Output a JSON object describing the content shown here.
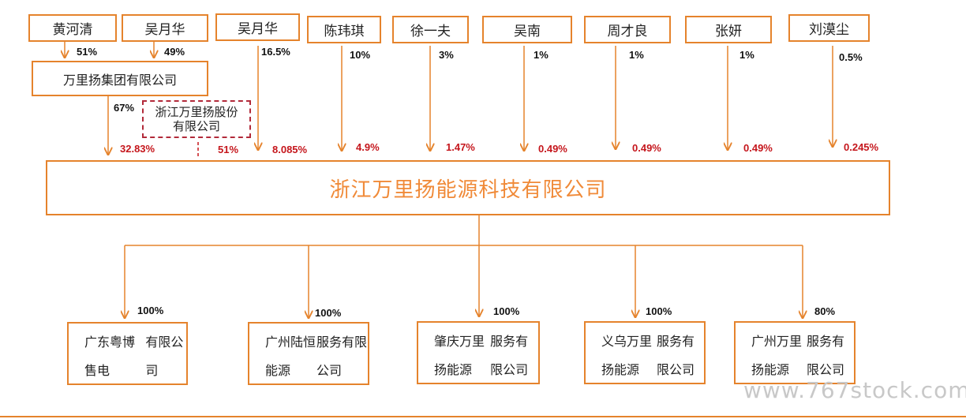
{
  "diagram": {
    "title": "浙江万里扬能源科技有限公司",
    "top_shareholders": [
      {
        "name": "黄河清"
      },
      {
        "name": "吴月华"
      },
      {
        "name": "吴月华"
      },
      {
        "name": "陈玮琪"
      },
      {
        "name": "徐一夫"
      },
      {
        "name": "吴南"
      },
      {
        "name": "周才良"
      },
      {
        "name": "张妍"
      },
      {
        "name": "刘漠尘"
      }
    ],
    "group_company": "万里扬集团有限公司",
    "stock_company": "浙江万里扬股份有限公司",
    "ownership_labels": {
      "huang_to_group": "51%",
      "wu_to_group": "49%",
      "wu_indirect": "16.5%",
      "chen_indirect": "10%",
      "xu_indirect": "3%",
      "wunan_indirect": "1%",
      "zhou_indirect": "1%",
      "zhang_indirect": "1%",
      "liu_indirect": "0.5%",
      "group_to_stock": "67%"
    },
    "direct_stakes": {
      "group": "32.83%",
      "stock_company": "51%",
      "wu_yuehua": "8.085%",
      "chen": "4.9%",
      "xu": "1.47%",
      "wunan": "0.49%",
      "zhou": "0.49%",
      "zhang": "0.49%",
      "liu": "0.245%"
    },
    "subsidiaries": [
      {
        "line1": "广东粤博售电",
        "line2": "有限公司",
        "pct": "100%"
      },
      {
        "line1": "广州陆恒能源",
        "line2": "服务有限公司",
        "pct": "100%"
      },
      {
        "line1": "肇庆万里扬能源",
        "line2": "服务有限公司",
        "pct": "100%"
      },
      {
        "line1": "义乌万里扬能源",
        "line2": "服务有限公司",
        "pct": "100%"
      },
      {
        "line1": "广州万里扬能源",
        "line2": "服务有限公司",
        "pct": "80%"
      }
    ],
    "watermark": "www.767stock.com",
    "colors": {
      "box_border": "#e5832c",
      "highlight_text": "#c5161c",
      "title_text": "#f08a38",
      "line": "#e5832c"
    }
  }
}
